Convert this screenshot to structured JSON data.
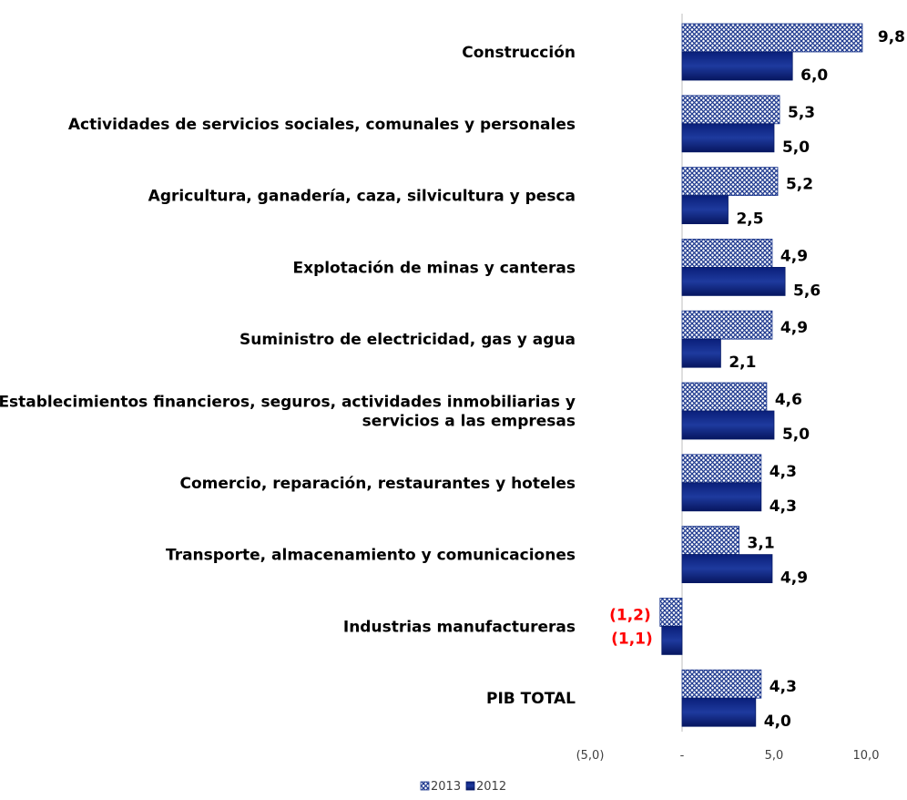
{
  "chart_data": {
    "type": "bar",
    "orientation": "horizontal",
    "categories": [
      [
        "Construcción"
      ],
      [
        "Actividades de servicios sociales, comunales y personales"
      ],
      [
        "Agricultura, ganadería, caza, silvicultura y pesca"
      ],
      [
        "Explotación de minas y canteras"
      ],
      [
        "Suministro de electricidad, gas y agua"
      ],
      [
        "Establecimientos financieros, seguros, actividades inmobiliarias y",
        "servicios a las empresas"
      ],
      [
        "Comercio, reparación, restaurantes y hoteles"
      ],
      [
        "Transporte, almacenamiento y comunicaciones"
      ],
      [
        "Industrias manufactureras"
      ],
      [
        "PIB TOTAL"
      ]
    ],
    "series": [
      {
        "name": "2013",
        "values": [
          9.8,
          5.3,
          5.2,
          4.9,
          4.9,
          4.6,
          4.3,
          3.1,
          -1.2,
          4.3
        ],
        "labels": [
          "9,8",
          "5,3",
          "5,2",
          "4,9",
          "4,9",
          "4,6",
          "4,3",
          "3,1",
          "(1,2)",
          "4,3"
        ],
        "pattern": "crosshatch",
        "color": "#1f3a8f"
      },
      {
        "name": "2012",
        "values": [
          6.0,
          5.0,
          2.5,
          5.6,
          2.1,
          5.0,
          4.3,
          4.9,
          -1.1,
          4.0
        ],
        "labels": [
          "6,0",
          "5,0",
          "2,5",
          "5,6",
          "2,1",
          "5,0",
          "4,3",
          "4,9",
          "(1,1)",
          "4,0"
        ],
        "pattern": "solid",
        "color": "#0a1f7a"
      }
    ],
    "x_ticks": [
      {
        "value": -5,
        "label": "(5,0)"
      },
      {
        "value": 0,
        "label": "-"
      },
      {
        "value": 5,
        "label": "5,0"
      },
      {
        "value": 10,
        "label": "10,0"
      }
    ],
    "xlim": [
      -5,
      10
    ],
    "grid": false,
    "legend_position": "bottom",
    "colors": {
      "positive_label": "#000000",
      "negative_label": "#ff0000",
      "axis": "#bfbfbf",
      "tick_text": "#404040"
    }
  }
}
